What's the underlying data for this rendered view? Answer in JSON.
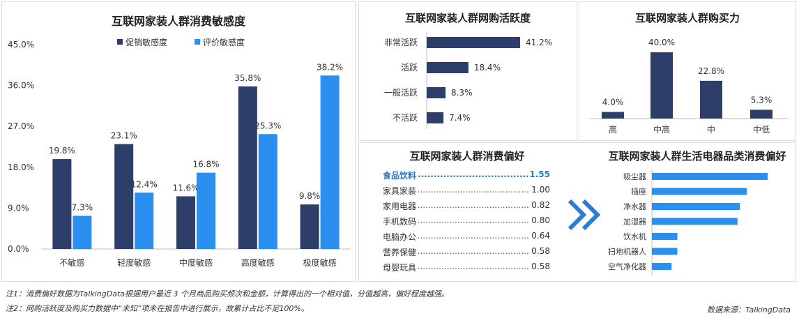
{
  "colors": {
    "dark": "#2d3e6b",
    "light": "#2b8ff0",
    "highlight": "#2b78c5",
    "arrow": "#2a7dd6"
  },
  "sensitivity": {
    "title": "互联网家装人群消费敏感度",
    "legend": [
      "促销敏感度",
      "评价敏感度"
    ],
    "y_ticks": [
      "45.0%",
      "36.0%",
      "27.0%",
      "18.0%",
      "9.0%",
      "0.0%"
    ]
  },
  "activity": {
    "title": "互联网家装人群网购活跃度"
  },
  "power": {
    "title": "互联网家装人群购买力"
  },
  "preference": {
    "title": "互联网家装人群消费偏好",
    "items": [
      {
        "label": "食品饮料",
        "value": "1.55",
        "highlight": true
      },
      {
        "label": "家具家装",
        "value": "1.00"
      },
      {
        "label": "家用电器",
        "value": "0.82"
      },
      {
        "label": "手机数码",
        "value": "0.80"
      },
      {
        "label": "电脑办公",
        "value": "0.64"
      },
      {
        "label": "营养保健",
        "value": "0.58"
      },
      {
        "label": "母婴玩具",
        "value": "0.58"
      }
    ]
  },
  "appliance": {
    "title": "互联网家装人群生活电器品类消费偏好"
  },
  "notes": {
    "note1": "注1：消费偏好数据为TalkingData根据用户最近 3 个月商品购买频次和金额，计算得出的一个相对值，分值越高，偏好程度越强。",
    "note2": "注2：网购活跃度及购买力数据中“未知”项未在报告中进行展示，故累计占比不足100%。",
    "source": "数据来源：TalkingData"
  },
  "chart_data": [
    {
      "type": "bar",
      "title": "互联网家装人群消费敏感度",
      "categories": [
        "不敏感",
        "轻度敏感",
        "中度敏感",
        "高度敏感",
        "极度敏感"
      ],
      "series": [
        {
          "name": "促销敏感度",
          "values": [
            19.8,
            23.1,
            11.6,
            35.8,
            9.8
          ],
          "labels": [
            "19.8%",
            "23.1%",
            "11.6%",
            "35.8%",
            "9.8%"
          ]
        },
        {
          "name": "评价敏感度",
          "values": [
            7.3,
            12.4,
            16.8,
            25.3,
            38.2
          ],
          "labels": [
            "7.3%",
            "12.4%",
            "16.8%",
            "25.3%",
            "38.2%"
          ]
        }
      ],
      "ylim": [
        0,
        45
      ],
      "legend": "top"
    },
    {
      "type": "bar",
      "orientation": "horizontal",
      "title": "互联网家装人群网购活跃度",
      "categories": [
        "非常活跃",
        "活跃",
        "一般活跃",
        "不活跃"
      ],
      "values": [
        41.2,
        18.4,
        8.3,
        7.4
      ],
      "labels": [
        "41.2%",
        "18.4%",
        "8.3%",
        "7.4%"
      ]
    },
    {
      "type": "bar",
      "title": "互联网家装人群购买力",
      "categories": [
        "高",
        "中高",
        "中",
        "中低"
      ],
      "values": [
        4.0,
        40.0,
        22.8,
        5.3
      ],
      "labels": [
        "4.0%",
        "40.0%",
        "22.8%",
        "5.3%"
      ]
    },
    {
      "type": "bar",
      "orientation": "horizontal",
      "title": "互联网家装人群生活电器品类消费偏好",
      "categories": [
        "吸尘器",
        "插座",
        "净水器",
        "加湿器",
        "饮水机",
        "扫地机器人",
        "空气净化器"
      ],
      "values": [
        1.0,
        0.82,
        0.76,
        0.74,
        0.22,
        0.22,
        0.17
      ]
    }
  ]
}
